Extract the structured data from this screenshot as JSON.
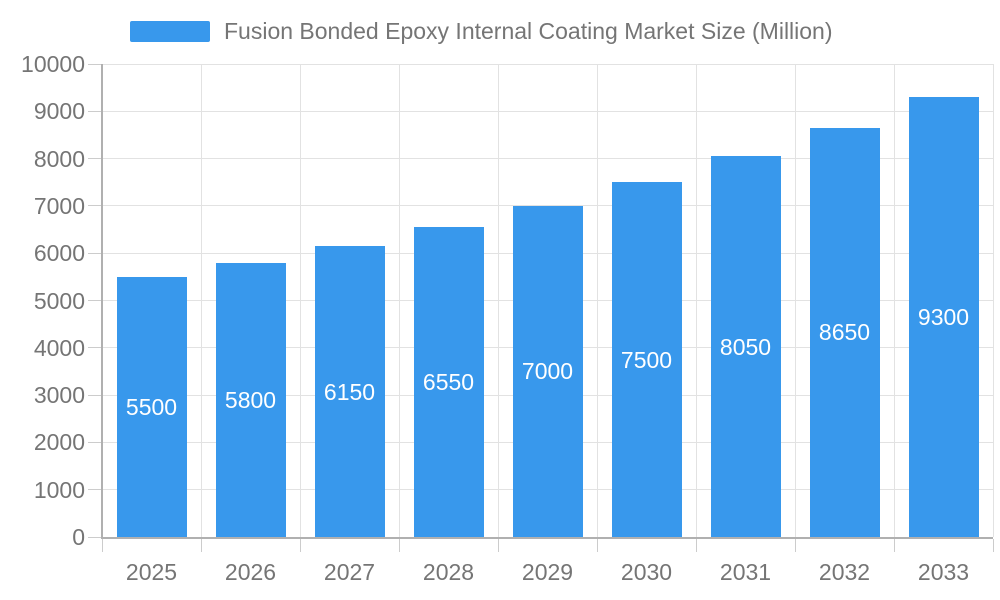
{
  "legend": {
    "label": "Fusion Bonded Epoxy Internal Coating Market Size (Million)"
  },
  "colors": {
    "bar": "#3898ec",
    "grid": "#e2e2e2",
    "axis": "#b0b0b0",
    "tick": "#cccccc",
    "tick_text": "#757575",
    "value_label_text": "#ffffff",
    "background": "#ffffff"
  },
  "chart_data": {
    "type": "bar",
    "title": "Fusion Bonded Epoxy Internal Coating Market Size (Million)",
    "categories": [
      "2025",
      "2026",
      "2027",
      "2028",
      "2029",
      "2030",
      "2031",
      "2032",
      "2033"
    ],
    "values": [
      5500,
      5800,
      6150,
      6550,
      7000,
      7500,
      8050,
      8650,
      9300
    ],
    "bar_labels": [
      "5500",
      "5800",
      "6150",
      "6550",
      "7000",
      "7500",
      "8050",
      "8650",
      "9300"
    ],
    "xlabel": "",
    "ylabel": "",
    "ylim": [
      0,
      10000
    ],
    "ytick_interval": 1000,
    "yticks": [
      0,
      1000,
      2000,
      3000,
      4000,
      5000,
      6000,
      7000,
      8000,
      9000,
      10000
    ],
    "grid": true,
    "legend_position": "top",
    "bar_label_position": "inside-center"
  }
}
